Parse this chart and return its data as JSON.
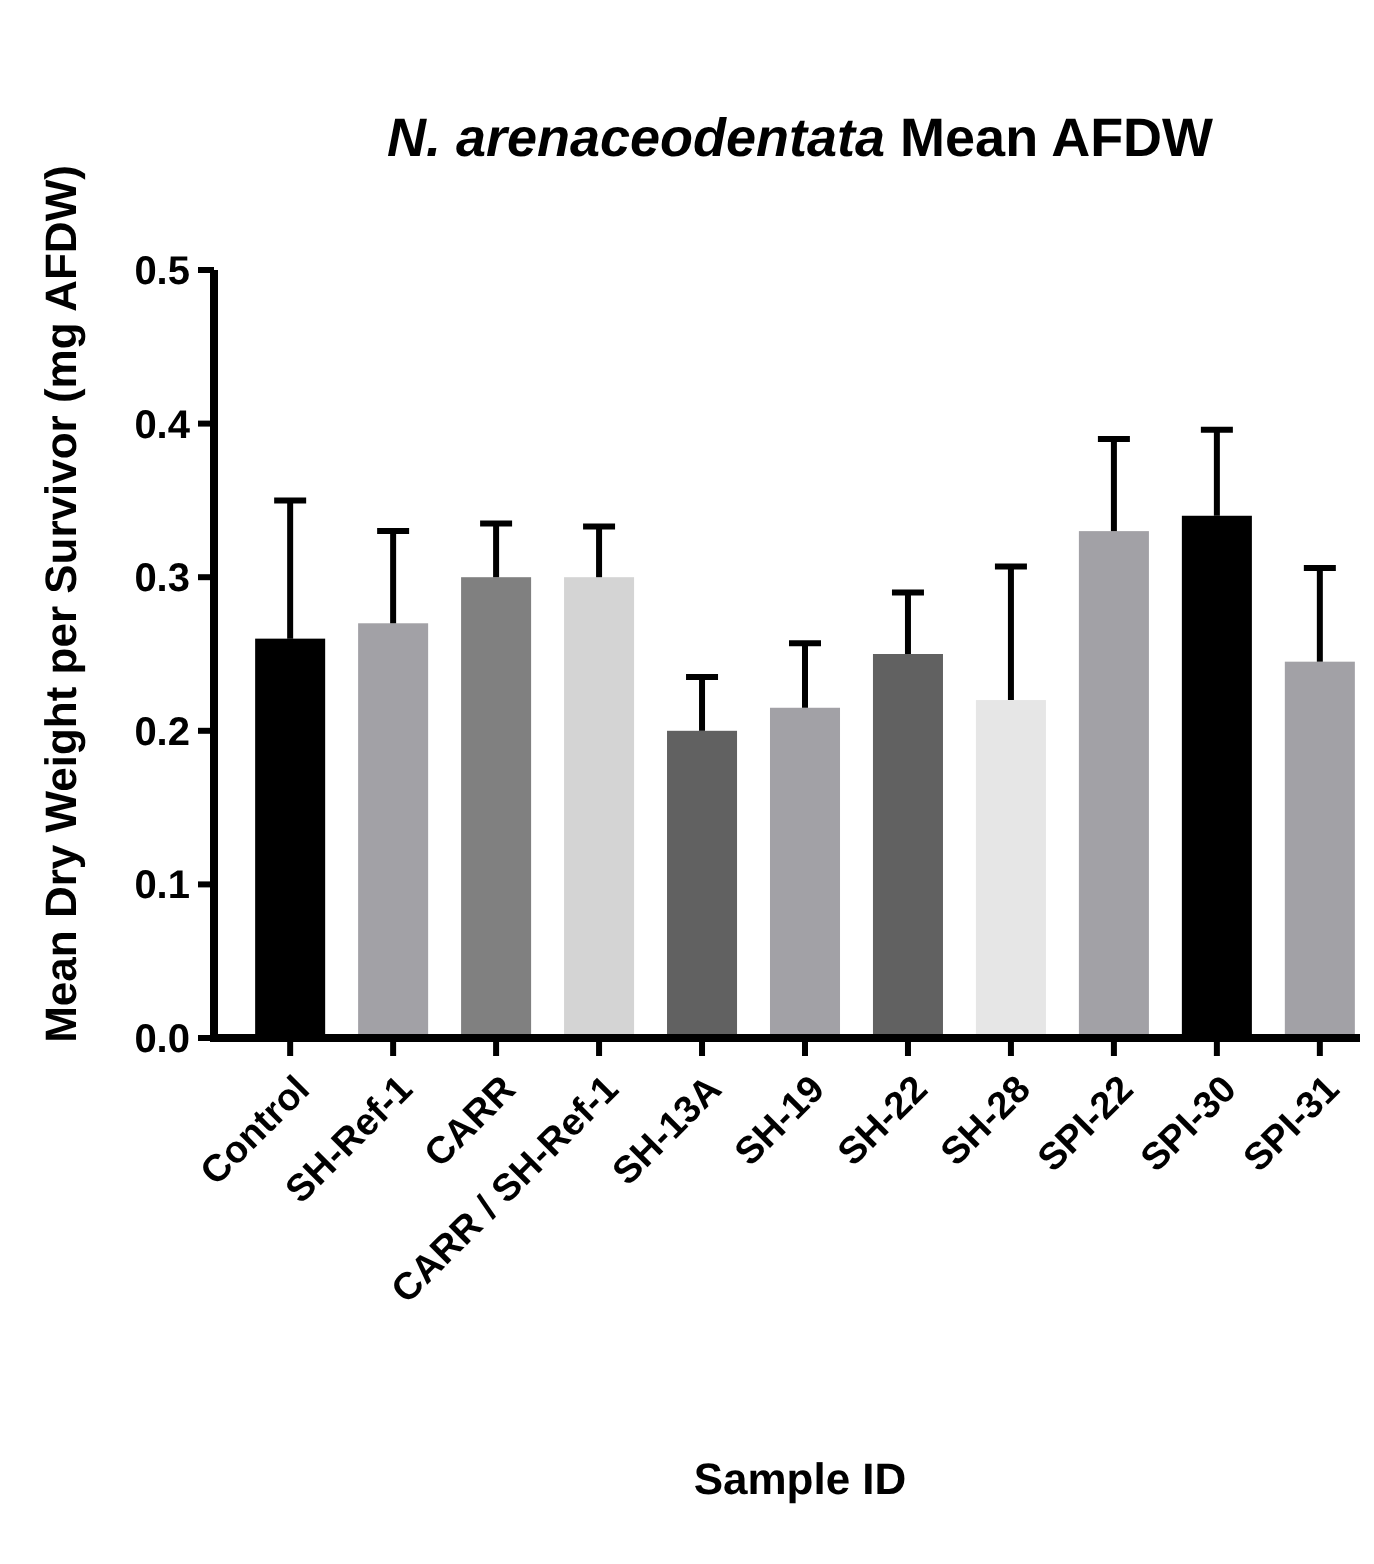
{
  "chart_data": {
    "type": "bar",
    "title": "N. arenaceodentata Mean AFDW",
    "xlabel": "Sample ID",
    "ylabel": "Mean Dry Weight per Survivor (mg AFDW)",
    "categories": [
      "Control",
      "SH-Ref-1",
      "CARR",
      "CARR / SH-Ref-1",
      "SH-13A",
      "SH-19",
      "SH-22",
      "SH-28",
      "SPI-22",
      "SPI-30",
      "SPI-31"
    ],
    "values": [
      0.26,
      0.27,
      0.3,
      0.3,
      0.2,
      0.215,
      0.25,
      0.22,
      0.33,
      0.34,
      0.245
    ],
    "errors": [
      [
        0.26,
        0.35
      ],
      [
        0.27,
        0.33
      ],
      [
        0.3,
        0.335
      ],
      [
        0.3,
        0.333
      ],
      [
        0.2,
        0.235
      ],
      [
        0.215,
        0.257
      ],
      [
        0.25,
        0.29
      ],
      [
        0.22,
        0.307
      ],
      [
        0.33,
        0.39
      ],
      [
        0.34,
        0.396
      ],
      [
        0.245,
        0.306
      ]
    ],
    "colors": [
      "#000000",
      "#a2a1a6",
      "#808080",
      "#d4d4d4",
      "#616161",
      "#a2a1a6",
      "#616161",
      "#e6e6e6",
      "#a2a1a6",
      "#000000",
      "#a2a1a6"
    ],
    "ylim": [
      0,
      0.5
    ],
    "yticks": [
      {
        "value": 0,
        "label": "0.0"
      },
      0.1,
      0.2,
      0.3,
      0.4,
      0.5
    ],
    "grid": false
  }
}
